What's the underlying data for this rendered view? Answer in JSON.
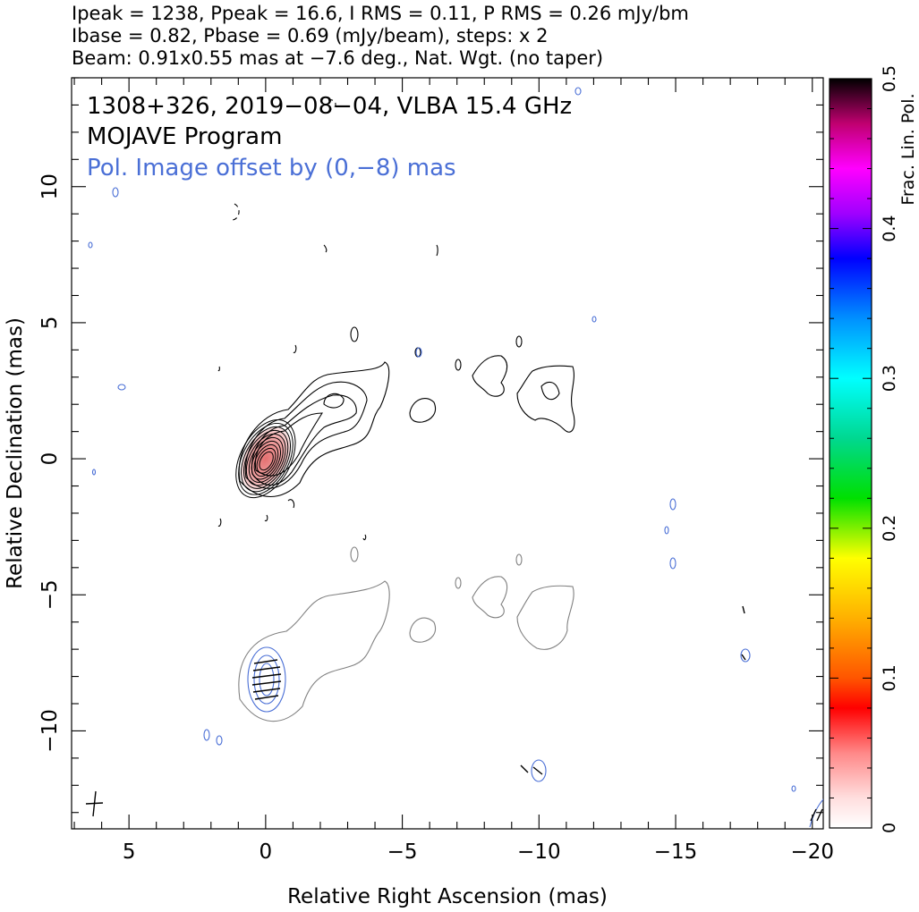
{
  "header": {
    "line1": "Ipeak = 1238, Ppeak = 16.6, I RMS = 0.11, P RMS = 0.26 mJy/bm",
    "line2": "Ibase = 0.82, Pbase = 0.69 (mJy/beam), steps: x 2",
    "line3": "Beam: 0.91x0.55 mas at −7.6 deg., Nat. Wgt. (no taper)"
  },
  "chart_data": {
    "type": "contour",
    "title_lines": [
      "1308+326, 2019−08−04, VLBA 15.4 GHz",
      "MOJAVE Program",
      "Pol. Image offset by (0,−8) mas"
    ],
    "xlabel": "Relative Right Ascension (mas)",
    "ylabel": "Relative Declination (mas)",
    "xlim": [
      7.1,
      -20.4
    ],
    "ylim": [
      -13.6,
      14.0
    ],
    "x_ticks": [
      5,
      0,
      -5,
      -10,
      -15,
      -20
    ],
    "x_tick_labels": [
      "5",
      "0",
      "−5",
      "−10",
      "−15",
      "−20"
    ],
    "y_ticks": [
      10,
      5,
      0,
      -5,
      -10
    ],
    "y_tick_labels": [
      "10",
      "5",
      "0",
      "−5",
      "−10"
    ],
    "colorbar": {
      "label": "Frac. Lin. Pol.",
      "range": [
        0,
        0.5
      ],
      "ticks": [
        0,
        0.1,
        0.2,
        0.3,
        0.4,
        0.5
      ],
      "tick_labels": [
        "0",
        "0.1",
        "0.2",
        "0.3",
        "0.4",
        "0.5"
      ]
    },
    "colors": {
      "total_intensity": "#000000",
      "polarization": "#4a6fd6",
      "pol_total_intensity": "#808080",
      "core_fill": "#e07a7a"
    },
    "core_position": [
      0,
      0
    ],
    "pol_offset": [
      0,
      -8
    ],
    "stokes_i_contour_levels_mjy": [
      0.82,
      1.64,
      3.28,
      6.56,
      13.12,
      26.24,
      52.48,
      104.96,
      209.92,
      419.84,
      839.68
    ],
    "beam": {
      "major_mas": 0.91,
      "minor_mas": 0.55,
      "pa_deg": -7.6
    }
  }
}
